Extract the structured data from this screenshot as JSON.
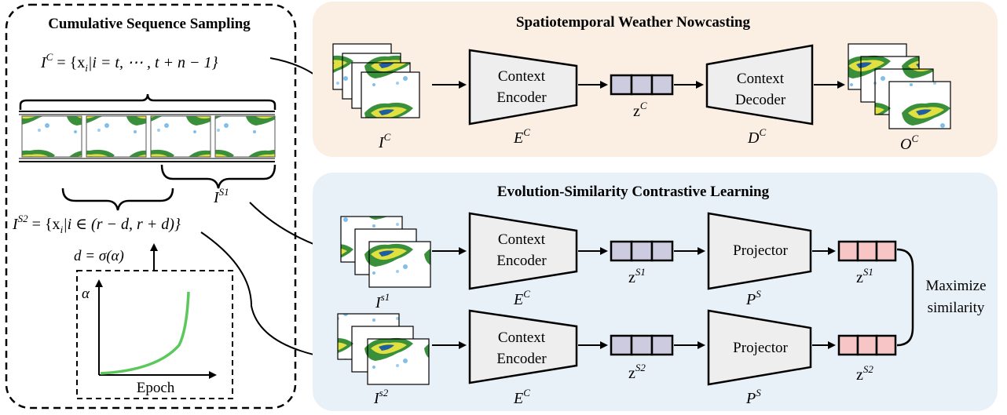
{
  "panels": {
    "left_title": "Cumulative Sequence Sampling",
    "top_title": "Spatiotemporal Weather Nowcasting",
    "bottom_title": "Evolution-Similarity Contrastive Learning"
  },
  "left": {
    "eq_ic": "I^C = {x_i | i = t, ⋯, t + n − 1}",
    "eq_ic_main": "I",
    "eq_ic_sup": "C",
    "eq_ic_rest": " = {x",
    "eq_ic_sub": "i",
    "eq_ic_tail": "|i = t, ⋯ , t + n − 1}",
    "eq_is2_main": "I",
    "eq_is2_sup": "S2",
    "eq_is2_rest": " = {x",
    "eq_is2_sub": "i",
    "eq_is2_tail": "|i ∈ (r − d, r + d)}",
    "is1_main": "I",
    "is1_sup": "S1",
    "eq_d": "d = σ(α)",
    "alpha_label": "α",
    "epoch_label": "Epoch"
  },
  "top": {
    "input_main": "I",
    "input_sup": "C",
    "encoder_line1": "Context",
    "encoder_line2": "Encoder",
    "encoder_main": "E",
    "encoder_sup": "C",
    "latent_main": "z",
    "latent_sup": "C",
    "decoder_line1": "Context",
    "decoder_line2": "Decoder",
    "decoder_main": "D",
    "decoder_sup": "C",
    "output_main": "O",
    "output_sup": "C"
  },
  "bottom": {
    "row1": {
      "input_main": "I",
      "input_sup": "s1",
      "encoder_line1": "Context",
      "encoder_line2": "Encoder",
      "encoder_main": "E",
      "encoder_sup": "C",
      "latent_main": "z",
      "latent_sup": "S1",
      "projector": "Projector",
      "projector_main": "P",
      "projector_sup": "S",
      "proj_main": "z",
      "proj_sup": "S1"
    },
    "row2": {
      "input_main": "I",
      "input_sup": "s2",
      "encoder_line1": "Context",
      "encoder_line2": "Encoder",
      "encoder_main": "E",
      "encoder_sup": "C",
      "latent_main": "z",
      "latent_sup": "S2",
      "projector": "Projector",
      "projector_main": "P",
      "projector_sup": "S",
      "proj_main": "z",
      "proj_sup": "S2"
    },
    "maximize_line1": "Maximize",
    "maximize_line2": "similarity"
  },
  "colors": {
    "top_panel": "#fbeee3",
    "bottom_panel": "#e9f1f8",
    "latent_fill": "#cdcbe0",
    "proj_fill": "#f7c5c5",
    "trapezoid_fill": "#eeeeee",
    "curve": "#5cc85c"
  }
}
